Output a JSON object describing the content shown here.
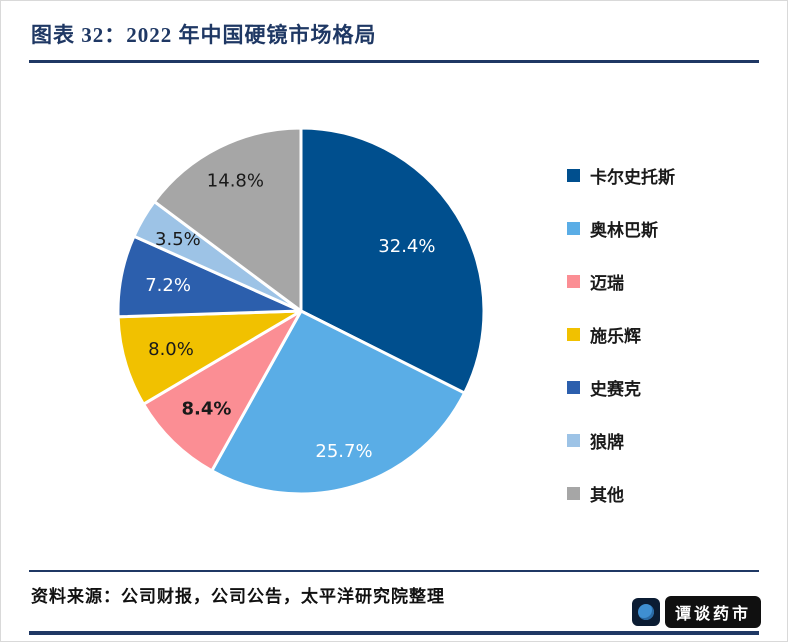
{
  "header": {
    "title": "图表 32：2022 年中国硬镜市场格局"
  },
  "footer": {
    "source": "资料来源：公司财报，公司公告，太平洋研究院整理",
    "watermark": "谭谈药市"
  },
  "colors": {
    "accent_navy": "#1f3864",
    "rule_navy": "#1f3864",
    "watermark_bg": "#101010"
  },
  "chart_data": {
    "type": "pie",
    "title": "2022 年中国硬镜市场格局",
    "legend_position": "right",
    "start_angle_deg": -90,
    "direction": "clockwise",
    "total": 100,
    "slices": [
      {
        "label": "卡尔史托斯",
        "value": 32.4,
        "display": "32.4%",
        "color": "#004F8E",
        "label_color": "#ffffff",
        "label_r": 0.68,
        "bold": false
      },
      {
        "label": "奥林巴斯",
        "value": 25.7,
        "display": "25.7%",
        "color": "#5AADE6",
        "label_color": "#ffffff",
        "label_r": 0.8,
        "bold": false
      },
      {
        "label": "迈瑞",
        "value": 8.4,
        "display": "8.4%",
        "color": "#FB8E94",
        "label_color": "#1a1a1a",
        "label_r": 0.74,
        "bold": true
      },
      {
        "label": "施乐辉",
        "value": 8.0,
        "display": "8.0%",
        "color": "#F1C100",
        "label_color": "#1a1a1a",
        "label_r": 0.74,
        "bold": false
      },
      {
        "label": "史赛克",
        "value": 7.2,
        "display": "7.2%",
        "color": "#2C5FAD",
        "label_color": "#ffffff",
        "label_r": 0.74,
        "bold": false
      },
      {
        "label": "狼牌",
        "value": 3.5,
        "display": "3.5%",
        "color": "#9DC3E6",
        "label_color": "#1a1a1a",
        "label_r": 0.78,
        "bold": false
      },
      {
        "label": "其他",
        "value": 14.8,
        "display": "14.8%",
        "color": "#A6A6A6",
        "label_color": "#1a1a1a",
        "label_r": 0.8,
        "bold": false
      }
    ]
  }
}
